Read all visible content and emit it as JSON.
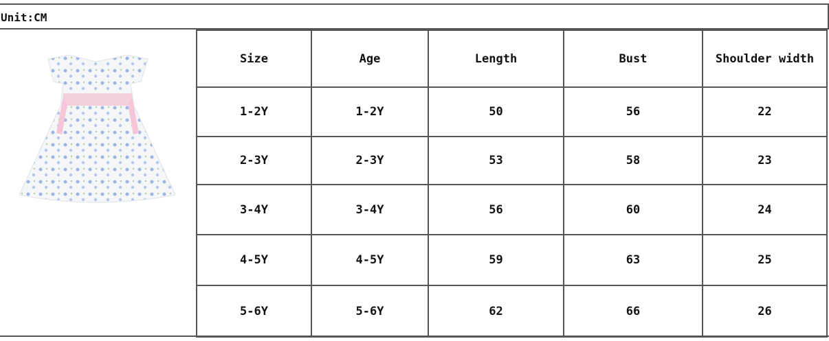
{
  "unit_label": "Unit:CM",
  "product_image": "floral-dress-icon",
  "table": {
    "headers": [
      "Size",
      "Age",
      "Length",
      "Bust",
      "Shoulder width"
    ],
    "rows": [
      [
        "1-2Y",
        "1-2Y",
        "50",
        "56",
        "22"
      ],
      [
        "2-3Y",
        "2-3Y",
        "53",
        "58",
        "23"
      ],
      [
        "3-4Y",
        "3-4Y",
        "56",
        "60",
        "24"
      ],
      [
        "4-5Y",
        "4-5Y",
        "59",
        "63",
        "25"
      ],
      [
        "5-6Y",
        "5-6Y",
        "62",
        "66",
        "26"
      ]
    ]
  },
  "colors": {
    "border": "#555555",
    "dress_pattern": "#8fa8e0",
    "sash": "#f4c6d8"
  }
}
